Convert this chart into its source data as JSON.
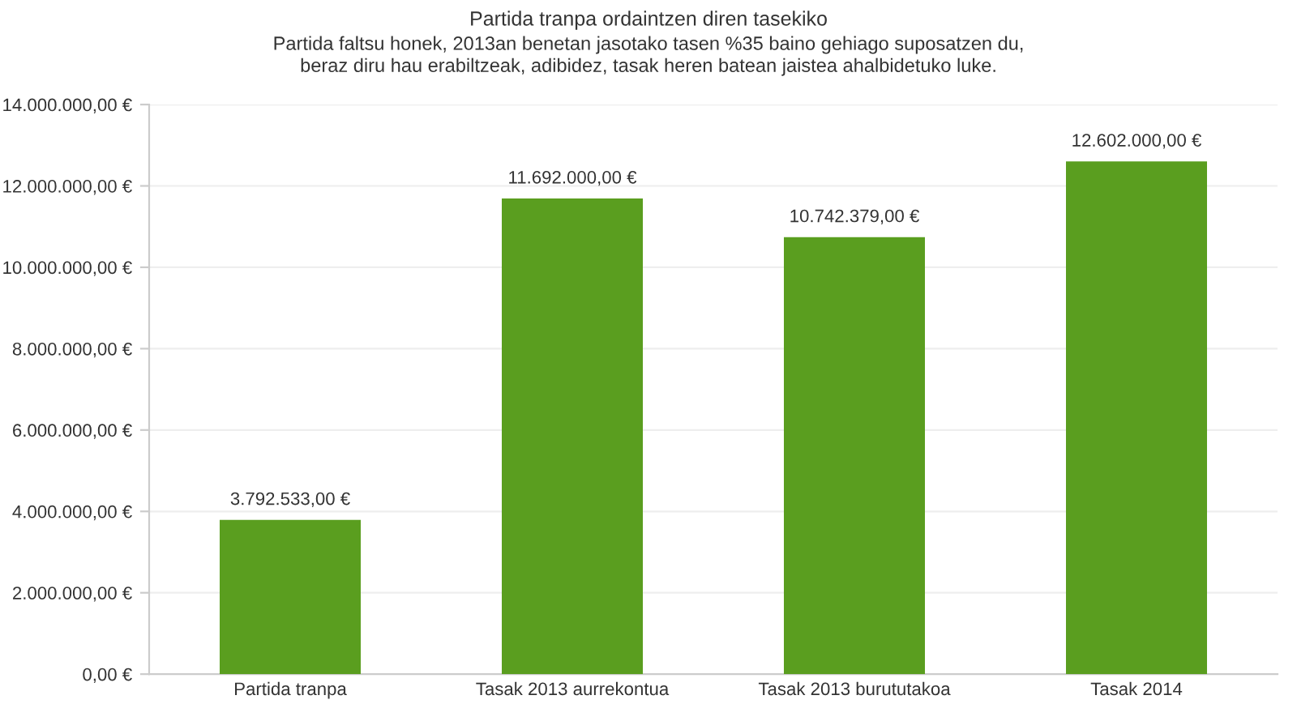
{
  "chart_data": {
    "type": "bar",
    "title": "Partida tranpa ordaintzen diren tasekiko",
    "subtitle": "Partida faltsu honek, 2013an benetan jasotako tasen %35 baino gehiago suposatzen du,\nberaz diru hau erabiltzeak, adibidez, tasak heren batean jaistea ahalbidetuko luke.",
    "categories": [
      "Partida tranpa",
      "Tasak 2013 aurrekontua",
      "Tasak 2013 burututakoa",
      "Tasak 2014"
    ],
    "values": [
      3792533,
      11692000,
      10742379,
      12602000
    ],
    "value_labels": [
      "3.792.533,00 €",
      "11.692.000,00 €",
      "10.742.379,00 €",
      "12.602.000,00 €"
    ],
    "color": "#5a9e1f",
    "ylim": [
      0,
      14000000
    ],
    "yticks": [
      {
        "value": 0,
        "label": "0,00 €"
      },
      {
        "value": 2000000,
        "label": "2.000.000,00 €"
      },
      {
        "value": 4000000,
        "label": "4.000.000,00 €"
      },
      {
        "value": 6000000,
        "label": "6.000.000,00 €"
      },
      {
        "value": 8000000,
        "label": "8.000.000,00 €"
      },
      {
        "value": 10000000,
        "label": "10.000.000,00 €"
      },
      {
        "value": 12000000,
        "label": "12.000.000,00 €"
      },
      {
        "value": 14000000,
        "label": "14.000.000,00 €"
      }
    ],
    "grid": "y"
  }
}
